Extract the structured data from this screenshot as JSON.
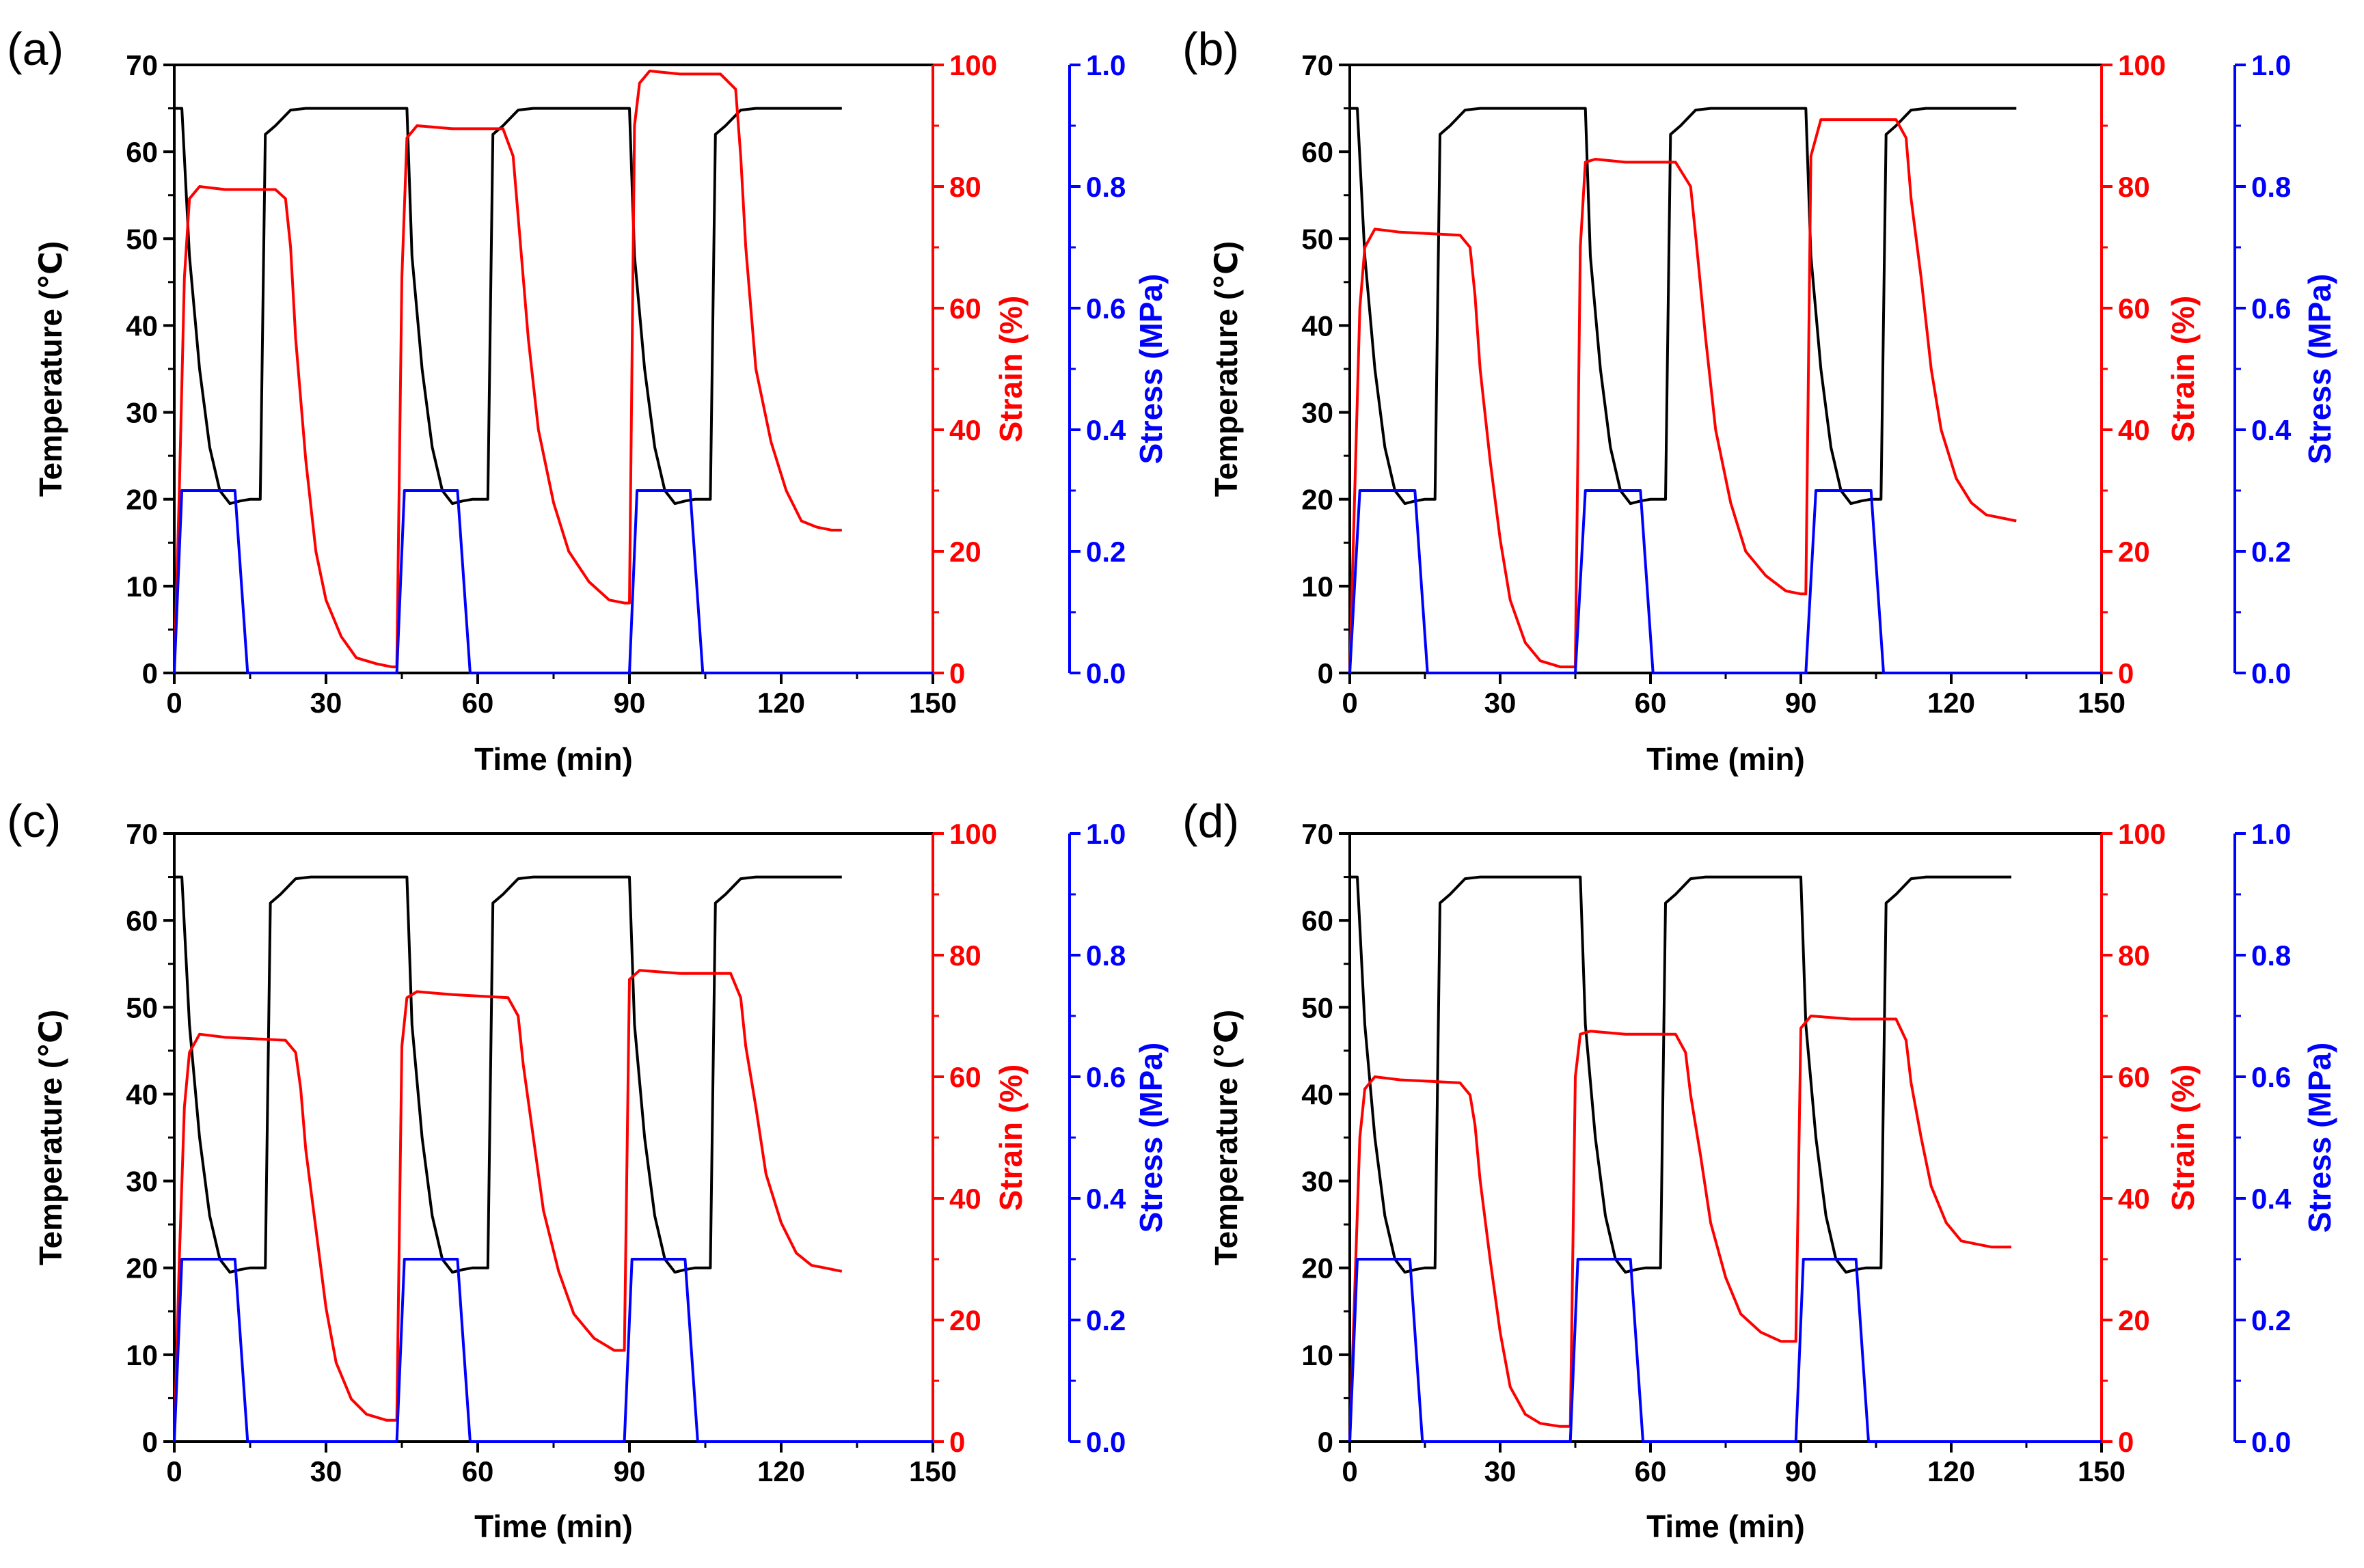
{
  "colors": {
    "temperature": "#000000",
    "strain": "#ff0000",
    "stress": "#0000ff"
  },
  "chart_data": [
    {
      "panel": "(a)",
      "type": "line",
      "xlabel": "Time (min)",
      "xlim": [
        0,
        150
      ],
      "xticks": [
        "0",
        "30",
        "60",
        "90",
        "120",
        "150"
      ],
      "y_left": {
        "label": "Temperature (℃)",
        "lim": [
          0,
          70
        ],
        "ticks": [
          "0",
          "10",
          "20",
          "30",
          "40",
          "50",
          "60",
          "70"
        ]
      },
      "y_right1": {
        "label": "Strain (%)",
        "lim": [
          0,
          100
        ],
        "ticks": [
          "0",
          "20",
          "40",
          "60",
          "80",
          "100"
        ]
      },
      "y_right2": {
        "label": "Stress (MPa)",
        "lim": [
          0,
          1.0
        ],
        "ticks": [
          "0.0",
          "0.2",
          "0.4",
          "0.6",
          "0.8",
          "1.0"
        ]
      },
      "series": [
        {
          "name": "Temperature",
          "axis": "left",
          "x": [
            0,
            1.5,
            3,
            5,
            7,
            9,
            11,
            13,
            15,
            16,
            17,
            18,
            20,
            23,
            26,
            46,
            47,
            49,
            51,
            53,
            55,
            57,
            59,
            61,
            62,
            63,
            65,
            68,
            71,
            90,
            91,
            93,
            95,
            97,
            99,
            101,
            103,
            105,
            106,
            107,
            109,
            112,
            115,
            132
          ],
          "values": [
            65,
            65,
            48,
            35,
            26,
            21,
            19.5,
            19.8,
            20,
            20,
            20,
            62,
            63,
            64.8,
            65,
            65,
            48,
            35,
            26,
            21,
            19.5,
            19.8,
            20,
            20,
            20,
            62,
            63,
            64.8,
            65,
            65,
            48,
            35,
            26,
            21,
            19.5,
            19.8,
            20,
            20,
            20,
            62,
            63,
            64.8,
            65,
            65
          ]
        },
        {
          "name": "Strain",
          "axis": "right1",
          "x": [
            0,
            1,
            2,
            3,
            5,
            10,
            20,
            22,
            23,
            24,
            26,
            28,
            30,
            33,
            36,
            40,
            43,
            44,
            45,
            46,
            48,
            55,
            65,
            67,
            68,
            70,
            72,
            75,
            78,
            82,
            86,
            89,
            90,
            91,
            92,
            94,
            100,
            108,
            111,
            112,
            113,
            115,
            118,
            121,
            124,
            127,
            130,
            132
          ],
          "values": [
            0,
            30,
            65,
            78,
            80,
            79.5,
            79.5,
            78,
            70,
            55,
            35,
            20,
            12,
            6,
            2.5,
            1.5,
            1,
            1,
            65,
            88,
            90,
            89.5,
            89.5,
            85,
            75,
            55,
            40,
            28,
            20,
            15,
            12,
            11.5,
            11.5,
            90,
            97,
            99,
            98.5,
            98.5,
            96,
            85,
            70,
            50,
            38,
            30,
            25,
            24,
            23.5,
            23.5
          ]
        },
        {
          "name": "Stress",
          "axis": "right2",
          "x": [
            0,
            1.5,
            12,
            14.5,
            150,
            150
          ],
          "values": [
            0,
            0.3,
            0.3,
            0,
            0,
            0
          ]
        }
      ]
    },
    {
      "panel": "(b)",
      "type": "line",
      "xlabel": "Time (min)",
      "xlim": [
        0,
        150
      ],
      "xticks": [
        "0",
        "30",
        "60",
        "90",
        "120",
        "150"
      ],
      "y_left": {
        "label": "Temperature (℃)",
        "lim": [
          0,
          70
        ],
        "ticks": [
          "0",
          "10",
          "20",
          "30",
          "40",
          "50",
          "60",
          "70"
        ]
      },
      "y_right1": {
        "label": "Strain (%)",
        "lim": [
          0,
          100
        ],
        "ticks": [
          "0",
          "20",
          "40",
          "60",
          "80",
          "100"
        ]
      },
      "y_right2": {
        "label": "Stress (MPa)",
        "lim": [
          0,
          1.0
        ],
        "ticks": [
          "0.0",
          "0.2",
          "0.4",
          "0.6",
          "0.8",
          "1.0"
        ]
      },
      "series": [
        {
          "name": "Temperature",
          "axis": "left",
          "x": [
            0,
            1.5,
            3,
            5,
            7,
            9,
            11,
            13,
            15,
            16,
            17,
            18,
            20,
            23,
            26,
            47,
            48,
            50,
            52,
            54,
            56,
            58,
            60,
            62,
            63,
            64,
            66,
            69,
            72,
            91,
            92,
            94,
            96,
            98,
            100,
            102,
            104,
            105,
            106,
            107,
            109,
            112,
            115,
            133
          ],
          "values": [
            65,
            65,
            48,
            35,
            26,
            21,
            19.5,
            19.8,
            20,
            20,
            20,
            62,
            63,
            64.8,
            65,
            65,
            48,
            35,
            26,
            21,
            19.5,
            19.8,
            20,
            20,
            20,
            62,
            63,
            64.8,
            65,
            65,
            48,
            35,
            26,
            21,
            19.5,
            19.8,
            20,
            20,
            20,
            62,
            63,
            64.8,
            65,
            65
          ]
        },
        {
          "name": "Strain",
          "axis": "right1",
          "x": [
            0,
            1,
            2,
            3,
            5,
            10,
            22,
            24,
            25,
            26,
            28,
            30,
            32,
            35,
            38,
            42,
            45,
            46,
            47,
            49,
            55,
            65,
            68,
            69,
            71,
            73,
            76,
            79,
            83,
            87,
            90,
            91,
            92,
            94,
            100,
            109,
            111,
            112,
            114,
            116,
            118,
            121,
            124,
            127,
            130,
            133
          ],
          "values": [
            0,
            30,
            60,
            70,
            73,
            72.5,
            72,
            70,
            62,
            50,
            35,
            22,
            12,
            5,
            2,
            1,
            1,
            70,
            84,
            84.5,
            84,
            84,
            80,
            72,
            55,
            40,
            28,
            20,
            16,
            13.5,
            13,
            13,
            85,
            91,
            91,
            91,
            88,
            78,
            65,
            50,
            40,
            32,
            28,
            26,
            25.5,
            25
          ]
        },
        {
          "name": "Stress",
          "axis": "right2",
          "x": [
            0,
            2,
            13,
            15.5,
            150,
            150
          ],
          "values": [
            0,
            0.3,
            0.3,
            0,
            0,
            0
          ]
        }
      ]
    },
    {
      "panel": "(c)",
      "type": "line",
      "xlabel": "Time (min)",
      "xlim": [
        0,
        150
      ],
      "xticks": [
        "0",
        "30",
        "60",
        "90",
        "120",
        "150"
      ],
      "y_left": {
        "label": "Temperature (℃)",
        "lim": [
          0,
          70
        ],
        "ticks": [
          "0",
          "10",
          "20",
          "30",
          "40",
          "50",
          "60",
          "70"
        ]
      },
      "y_right1": {
        "label": "Strain (%)",
        "lim": [
          0,
          100
        ],
        "ticks": [
          "0",
          "20",
          "40",
          "60",
          "80",
          "100"
        ]
      },
      "y_right2": {
        "label": "Stress (MPa)",
        "lim": [
          0,
          1.0
        ],
        "ticks": [
          "0.0",
          "0.2",
          "0.4",
          "0.6",
          "0.8",
          "1.0"
        ]
      },
      "series": [
        {
          "name": "Temperature",
          "axis": "left",
          "x": [
            0,
            1.5,
            3,
            5,
            7,
            9,
            11,
            13,
            15,
            16,
            18,
            19,
            21,
            24,
            27,
            46,
            47,
            49,
            51,
            53,
            55,
            57,
            59,
            61,
            62,
            63,
            65,
            68,
            71,
            90,
            91,
            93,
            95,
            97,
            99,
            101,
            103,
            105,
            106,
            107,
            109,
            112,
            115,
            132
          ],
          "values": [
            65,
            65,
            48,
            35,
            26,
            21,
            19.5,
            19.8,
            20,
            20,
            20,
            62,
            63,
            64.8,
            65,
            65,
            48,
            35,
            26,
            21,
            19.5,
            19.8,
            20,
            20,
            20,
            62,
            63,
            64.8,
            65,
            65,
            48,
            35,
            26,
            21,
            19.5,
            19.8,
            20,
            20,
            20,
            62,
            63,
            64.8,
            65,
            65
          ]
        },
        {
          "name": "Strain",
          "axis": "right1",
          "x": [
            0,
            1,
            2,
            3,
            5,
            10,
            22,
            24,
            25,
            26,
            28,
            30,
            32,
            35,
            38,
            42,
            44,
            45,
            46,
            48,
            55,
            66,
            68,
            69,
            71,
            73,
            76,
            79,
            83,
            87,
            88,
            89,
            90,
            92,
            100,
            110,
            112,
            113,
            115,
            117,
            120,
            123,
            126,
            129,
            132
          ],
          "values": [
            0,
            30,
            55,
            64,
            67,
            66.5,
            66,
            64,
            58,
            48,
            35,
            22,
            13,
            7,
            4.5,
            3.5,
            3.5,
            65,
            73,
            74,
            73.5,
            73,
            70,
            62,
            50,
            38,
            28,
            21,
            17,
            15,
            15,
            15,
            76,
            77.5,
            77,
            77,
            73,
            65,
            55,
            44,
            36,
            31,
            29,
            28.5,
            28
          ]
        },
        {
          "name": "Stress",
          "axis": "right2",
          "x": [
            0,
            1.5,
            12,
            14.5,
            150,
            150
          ],
          "values": [
            0,
            0.3,
            0.3,
            0,
            0,
            0
          ]
        }
      ]
    },
    {
      "panel": "(d)",
      "type": "line",
      "xlabel": "Time (min)",
      "xlim": [
        0,
        150
      ],
      "xticks": [
        "0",
        "30",
        "60",
        "90",
        "120",
        "150"
      ],
      "y_left": {
        "label": "Temperature (℃)",
        "lim": [
          0,
          70
        ],
        "ticks": [
          "0",
          "10",
          "20",
          "30",
          "40",
          "50",
          "60",
          "70"
        ]
      },
      "y_right1": {
        "label": "Strain (%)",
        "lim": [
          0,
          100
        ],
        "ticks": [
          "0",
          "20",
          "40",
          "60",
          "80",
          "100"
        ]
      },
      "y_right2": {
        "label": "Stress (MPa)",
        "lim": [
          0,
          1.0
        ],
        "ticks": [
          "0.0",
          "0.2",
          "0.4",
          "0.6",
          "0.8",
          "1.0"
        ]
      },
      "series": [
        {
          "name": "Temperature",
          "axis": "left",
          "x": [
            0,
            1.5,
            3,
            5,
            7,
            9,
            11,
            13,
            15,
            16,
            17,
            18,
            20,
            23,
            26,
            46,
            47,
            49,
            51,
            53,
            55,
            57,
            59,
            61,
            62,
            63,
            65,
            68,
            71,
            90,
            91,
            93,
            95,
            97,
            99,
            101,
            103,
            105,
            106,
            107,
            109,
            112,
            115,
            132
          ],
          "values": [
            65,
            65,
            48,
            35,
            26,
            21,
            19.5,
            19.8,
            20,
            20,
            20,
            62,
            63,
            64.8,
            65,
            65,
            48,
            35,
            26,
            21,
            19.5,
            19.8,
            20,
            20,
            20,
            62,
            63,
            64.8,
            65,
            65,
            48,
            35,
            26,
            21,
            19.5,
            19.8,
            20,
            20,
            20,
            62,
            63,
            64.8,
            65,
            65
          ]
        },
        {
          "name": "Strain",
          "axis": "right1",
          "x": [
            0,
            1,
            2,
            3,
            5,
            10,
            22,
            24,
            25,
            26,
            28,
            30,
            32,
            35,
            38,
            42,
            44,
            45,
            46,
            48,
            55,
            65,
            67,
            68,
            70,
            72,
            75,
            78,
            82,
            86,
            88,
            89,
            90,
            92,
            100,
            109,
            111,
            112,
            114,
            116,
            119,
            122,
            125,
            128,
            132
          ],
          "values": [
            0,
            25,
            50,
            58,
            60,
            59.5,
            59,
            57,
            52,
            43,
            30,
            18,
            9,
            4.5,
            3,
            2.5,
            2.5,
            60,
            67,
            67.5,
            67,
            67,
            64,
            57,
            47,
            36,
            27,
            21,
            18,
            16.5,
            16.5,
            16.5,
            68,
            70,
            69.5,
            69.5,
            66,
            59,
            50,
            42,
            36,
            33,
            32.5,
            32,
            32
          ]
        },
        {
          "name": "Stress",
          "axis": "right2",
          "x": [
            0,
            1.5,
            12,
            14.5,
            150,
            150
          ],
          "values": [
            0,
            0.3,
            0.3,
            0,
            0,
            0
          ]
        }
      ]
    }
  ]
}
